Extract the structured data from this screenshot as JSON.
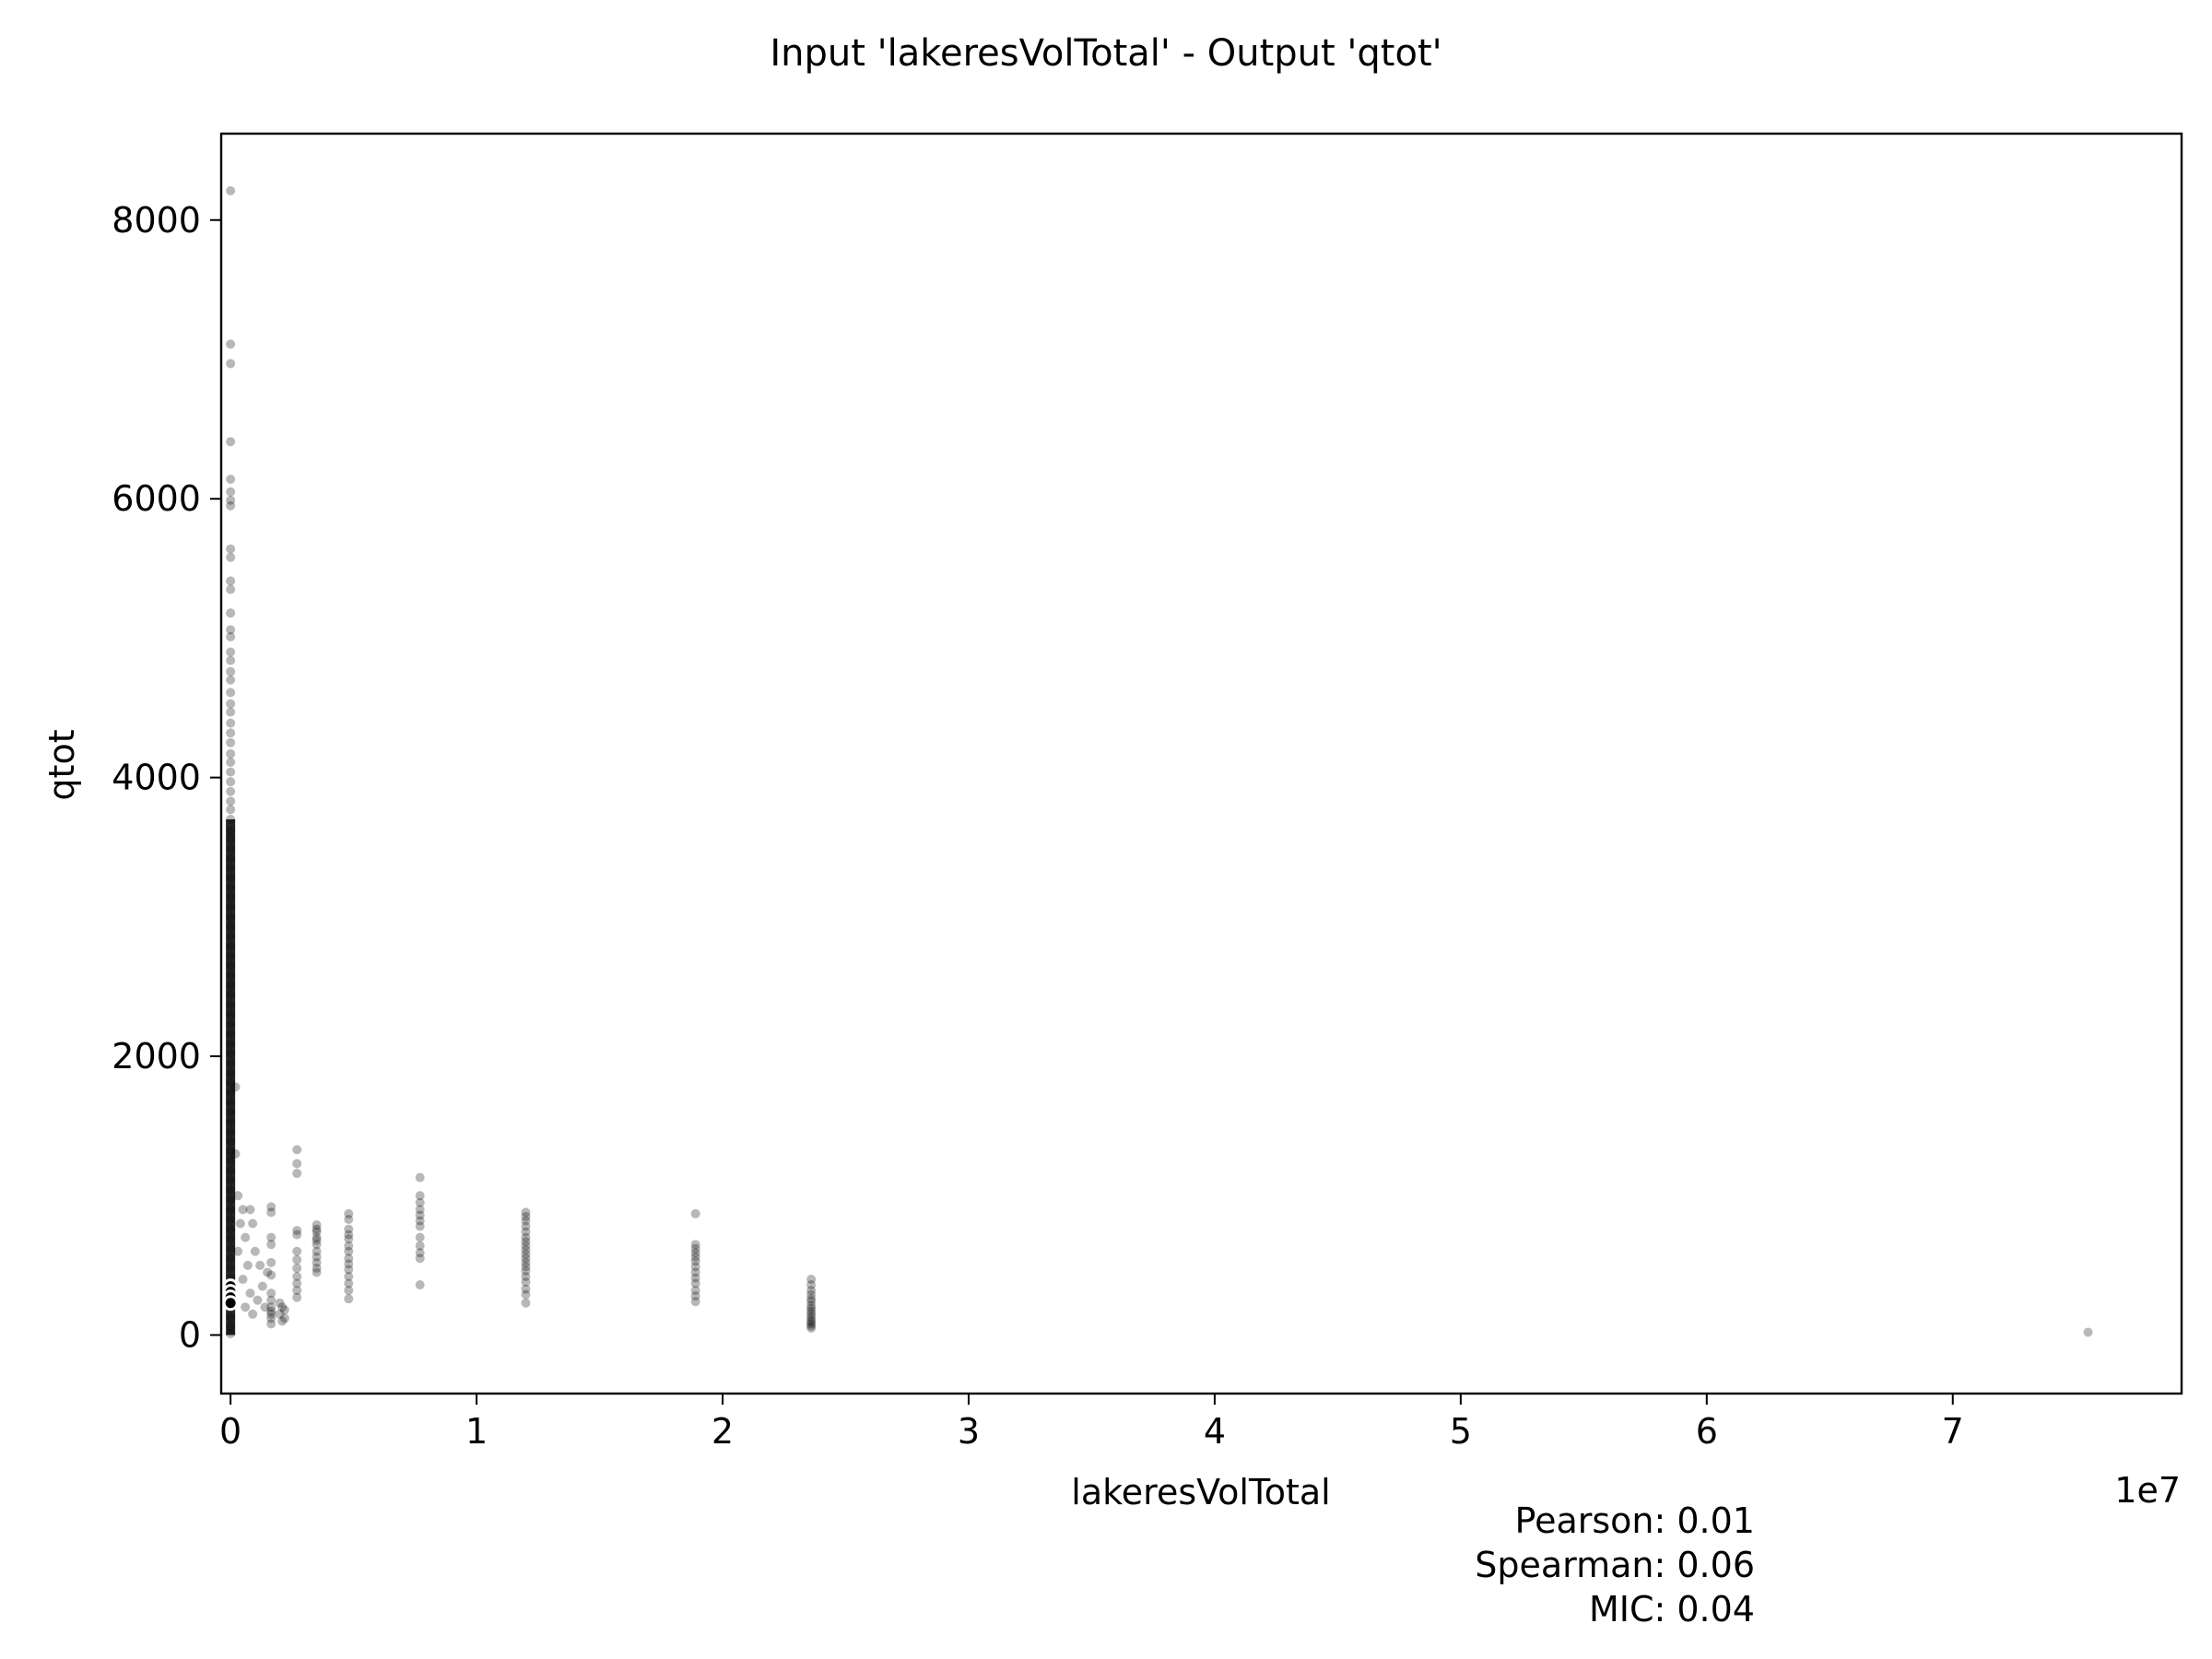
{
  "chart_data": {
    "type": "scatter",
    "title": "Input 'lakeresVolTotal' - Output 'qtot'",
    "xlabel": "lakeresVolTotal",
    "ylabel": "qtot",
    "x_offset_label": "1e7",
    "x_multiplier": 10000000,
    "xlim": [
      -0.038,
      7.93
    ],
    "ylim": [
      -420,
      8620
    ],
    "x_ticks": [
      0,
      1,
      2,
      3,
      4,
      5,
      6,
      7
    ],
    "x_tick_labels": [
      "0",
      "1",
      "2",
      "3",
      "4",
      "5",
      "6",
      "7"
    ],
    "y_ticks": [
      0,
      2000,
      4000,
      6000,
      8000
    ],
    "y_tick_labels": [
      "0",
      "2000",
      "4000",
      "6000",
      "8000"
    ],
    "grid": false,
    "marker_color": "#000000",
    "marker_alpha": 0.28,
    "series": [
      {
        "points": [
          [
            0,
            8210
          ],
          [
            0,
            7110
          ],
          [
            0,
            6970
          ],
          [
            0,
            6410
          ],
          [
            0,
            6140
          ],
          [
            0,
            6050
          ],
          [
            0,
            5990
          ],
          [
            0,
            5950
          ],
          [
            0,
            5640
          ],
          [
            0,
            5580
          ],
          [
            0,
            5410
          ],
          [
            0,
            5350
          ],
          [
            0,
            5180
          ],
          [
            0,
            5060
          ],
          [
            0,
            5010
          ],
          [
            0,
            4900
          ],
          [
            0,
            4840
          ],
          [
            0,
            4760
          ],
          [
            0,
            4700
          ],
          [
            0,
            4610
          ],
          [
            0,
            4530
          ],
          [
            0,
            4470
          ],
          [
            0,
            4390
          ],
          [
            0,
            4320
          ],
          [
            0,
            4250
          ],
          [
            0,
            4170
          ],
          [
            0,
            4110
          ],
          [
            0,
            4040
          ],
          [
            0,
            3970
          ],
          [
            0,
            3900
          ],
          [
            0,
            3830
          ],
          [
            0,
            3770
          ],
          [
            0,
            3700
          ],
          [
            0,
            3620
          ],
          [
            0,
            3560
          ],
          [
            0,
            3490
          ],
          [
            0,
            3420
          ],
          [
            0,
            3350
          ],
          [
            0,
            3280
          ],
          [
            0,
            3210
          ],
          [
            0,
            3140
          ],
          [
            0,
            3070
          ],
          [
            0,
            3000
          ],
          [
            0,
            2930
          ],
          [
            0,
            2860
          ],
          [
            0,
            2790
          ],
          [
            0,
            2720
          ],
          [
            0,
            2650
          ],
          [
            0,
            2580
          ],
          [
            0,
            2510
          ],
          [
            0,
            2440
          ],
          [
            0,
            2370
          ],
          [
            0,
            2300
          ],
          [
            0,
            2230
          ],
          [
            0,
            2160
          ],
          [
            0,
            2090
          ],
          [
            0,
            2020
          ],
          [
            0,
            1950
          ],
          [
            0,
            1880
          ],
          [
            0,
            1810
          ],
          [
            0,
            1740
          ],
          [
            0,
            1670
          ],
          [
            0,
            1600
          ],
          [
            0,
            1530
          ],
          [
            0,
            1460
          ],
          [
            0,
            1390
          ],
          [
            0,
            1320
          ],
          [
            0,
            1250
          ],
          [
            0,
            1180
          ],
          [
            0,
            1110
          ],
          [
            0,
            1040
          ],
          [
            0,
            970
          ],
          [
            0,
            900
          ],
          [
            0,
            830
          ],
          [
            0,
            760
          ],
          [
            0,
            690
          ],
          [
            0,
            620
          ],
          [
            0,
            550
          ],
          [
            0,
            480
          ],
          [
            0,
            410
          ],
          [
            0,
            340
          ],
          [
            0,
            270
          ],
          [
            0,
            200
          ],
          [
            0,
            130
          ],
          [
            0,
            60
          ],
          [
            0,
            10
          ],
          [
            0.02,
            1780
          ],
          [
            0.02,
            1300
          ],
          [
            0.03,
            1000
          ],
          [
            0.05,
            900
          ],
          [
            0.04,
            800
          ],
          [
            0.06,
            700
          ],
          [
            0.03,
            600
          ],
          [
            0.07,
            500
          ],
          [
            0.05,
            400
          ],
          [
            0.08,
            300
          ],
          [
            0.06,
            200
          ],
          [
            0.09,
            150
          ],
          [
            0.1,
            600
          ],
          [
            0.12,
            500
          ],
          [
            0.13,
            350
          ],
          [
            0.11,
            250
          ],
          [
            0.14,
            200
          ],
          [
            0.08,
            900
          ],
          [
            0.09,
            800
          ],
          [
            0.15,
            450
          ],
          [
            0.165,
            920
          ],
          [
            0.165,
            880
          ],
          [
            0.165,
            700
          ],
          [
            0.165,
            650
          ],
          [
            0.165,
            520
          ],
          [
            0.165,
            430
          ],
          [
            0.165,
            300
          ],
          [
            0.165,
            250
          ],
          [
            0.165,
            200
          ],
          [
            0.165,
            170
          ],
          [
            0.165,
            150
          ],
          [
            0.165,
            120
          ],
          [
            0.165,
            80
          ],
          [
            0.2,
            230
          ],
          [
            0.21,
            200
          ],
          [
            0.22,
            180
          ],
          [
            0.2,
            150
          ],
          [
            0.22,
            120
          ],
          [
            0.21,
            100
          ],
          [
            0.27,
            1330
          ],
          [
            0.27,
            1230
          ],
          [
            0.27,
            1160
          ],
          [
            0.27,
            750
          ],
          [
            0.27,
            720
          ],
          [
            0.27,
            600
          ],
          [
            0.27,
            540
          ],
          [
            0.27,
            480
          ],
          [
            0.27,
            420
          ],
          [
            0.27,
            370
          ],
          [
            0.27,
            320
          ],
          [
            0.27,
            270
          ],
          [
            0.35,
            790
          ],
          [
            0.35,
            760
          ],
          [
            0.35,
            740
          ],
          [
            0.35,
            700
          ],
          [
            0.35,
            680
          ],
          [
            0.35,
            650
          ],
          [
            0.35,
            600
          ],
          [
            0.35,
            560
          ],
          [
            0.35,
            520
          ],
          [
            0.35,
            480
          ],
          [
            0.35,
            450
          ],
          [
            0.48,
            870
          ],
          [
            0.48,
            830
          ],
          [
            0.48,
            760
          ],
          [
            0.48,
            720
          ],
          [
            0.48,
            690
          ],
          [
            0.48,
            640
          ],
          [
            0.48,
            600
          ],
          [
            0.48,
            550
          ],
          [
            0.48,
            510
          ],
          [
            0.48,
            470
          ],
          [
            0.48,
            420
          ],
          [
            0.48,
            370
          ],
          [
            0.48,
            320
          ],
          [
            0.48,
            260
          ],
          [
            0.77,
            1130
          ],
          [
            0.77,
            1000
          ],
          [
            0.77,
            950
          ],
          [
            0.77,
            900
          ],
          [
            0.77,
            860
          ],
          [
            0.77,
            820
          ],
          [
            0.77,
            780
          ],
          [
            0.77,
            700
          ],
          [
            0.77,
            640
          ],
          [
            0.77,
            590
          ],
          [
            0.77,
            550
          ],
          [
            0.77,
            360
          ],
          [
            1.2,
            880
          ],
          [
            1.2,
            850
          ],
          [
            1.2,
            820
          ],
          [
            1.2,
            780
          ],
          [
            1.2,
            740
          ],
          [
            1.2,
            700
          ],
          [
            1.2,
            670
          ],
          [
            1.2,
            640
          ],
          [
            1.2,
            610
          ],
          [
            1.2,
            580
          ],
          [
            1.2,
            550
          ],
          [
            1.2,
            520
          ],
          [
            1.2,
            490
          ],
          [
            1.2,
            460
          ],
          [
            1.2,
            420
          ],
          [
            1.2,
            380
          ],
          [
            1.2,
            330
          ],
          [
            1.2,
            290
          ],
          [
            1.2,
            230
          ],
          [
            1.89,
            870
          ],
          [
            1.89,
            650
          ],
          [
            1.89,
            620
          ],
          [
            1.89,
            590
          ],
          [
            1.89,
            560
          ],
          [
            1.89,
            530
          ],
          [
            1.89,
            490
          ],
          [
            1.89,
            450
          ],
          [
            1.89,
            410
          ],
          [
            1.89,
            370
          ],
          [
            1.89,
            320
          ],
          [
            1.89,
            280
          ],
          [
            1.89,
            240
          ],
          [
            2.36,
            400
          ],
          [
            2.36,
            360
          ],
          [
            2.36,
            320
          ],
          [
            2.36,
            290
          ],
          [
            2.36,
            260
          ],
          [
            2.36,
            240
          ],
          [
            2.36,
            210
          ],
          [
            2.36,
            190
          ],
          [
            2.36,
            170
          ],
          [
            2.36,
            150
          ],
          [
            2.36,
            130
          ],
          [
            2.36,
            110
          ],
          [
            2.36,
            95
          ],
          [
            2.36,
            80
          ],
          [
            2.36,
            65
          ],
          [
            2.36,
            50
          ],
          [
            7.55,
            20
          ]
        ]
      }
    ],
    "outlined_markers": [
      [
        0,
        350
      ],
      [
        0,
        310
      ],
      [
        0,
        270
      ],
      [
        0,
        230
      ]
    ],
    "stats": {
      "pearson": "Pearson: 0.01",
      "spearman": "Spearman: 0.06",
      "mic": "MIC: 0.04"
    }
  }
}
